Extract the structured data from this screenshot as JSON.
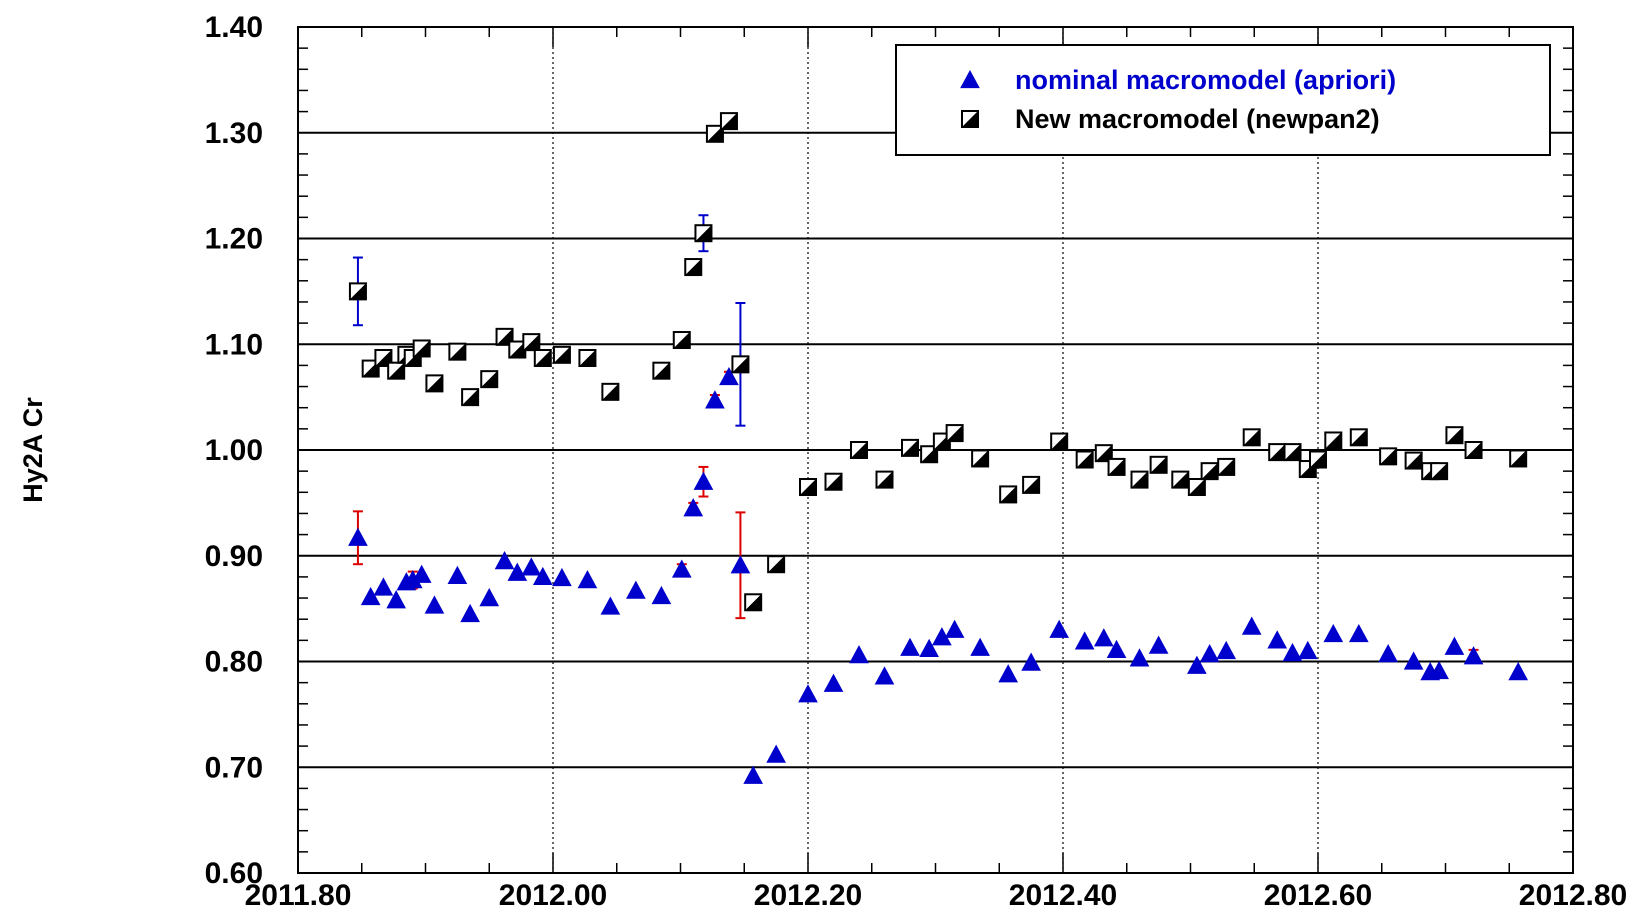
{
  "chart_data": {
    "type": "scatter",
    "title": "",
    "xlabel": "",
    "ylabel": "Hy2A Cr",
    "xlim": [
      2011.8,
      2012.8
    ],
    "ylim": [
      0.6,
      1.4
    ],
    "x_ticks": [
      "2011.80",
      "2012.00",
      "2012.20",
      "2012.40",
      "2012.60",
      "2012.80"
    ],
    "y_ticks": [
      "0.60",
      "0.70",
      "0.80",
      "0.90",
      "1.00",
      "1.10",
      "1.20",
      "1.30",
      "1.40"
    ],
    "grid": {
      "horizontal": "solid",
      "vertical": "dotted"
    },
    "legend_position": "top-right",
    "series": [
      {
        "name": "nominal macromodel (apriori)",
        "marker": "triangle",
        "color": "#0000cc",
        "error_color": "#dd0000",
        "points": [
          {
            "x": 2011.847,
            "y": 0.917,
            "err": 0.025
          },
          {
            "x": 2011.857,
            "y": 0.861
          },
          {
            "x": 2011.867,
            "y": 0.87
          },
          {
            "x": 2011.877,
            "y": 0.858
          },
          {
            "x": 2011.885,
            "y": 0.875
          },
          {
            "x": 2011.89,
            "y": 0.877,
            "err": 0.008
          },
          {
            "x": 2011.897,
            "y": 0.882
          },
          {
            "x": 2011.907,
            "y": 0.853
          },
          {
            "x": 2011.925,
            "y": 0.881
          },
          {
            "x": 2011.935,
            "y": 0.845
          },
          {
            "x": 2011.95,
            "y": 0.86
          },
          {
            "x": 2011.962,
            "y": 0.895
          },
          {
            "x": 2011.972,
            "y": 0.884
          },
          {
            "x": 2011.983,
            "y": 0.889
          },
          {
            "x": 2011.992,
            "y": 0.88
          },
          {
            "x": 2012.007,
            "y": 0.879
          },
          {
            "x": 2012.027,
            "y": 0.877
          },
          {
            "x": 2012.045,
            "y": 0.852
          },
          {
            "x": 2012.065,
            "y": 0.867
          },
          {
            "x": 2012.085,
            "y": 0.862
          },
          {
            "x": 2012.101,
            "y": 0.887,
            "err": 0.005
          },
          {
            "x": 2012.11,
            "y": 0.945,
            "err": 0.005
          },
          {
            "x": 2012.118,
            "y": 0.97,
            "err": 0.014
          },
          {
            "x": 2012.127,
            "y": 1.047,
            "err": 0.005
          },
          {
            "x": 2012.138,
            "y": 1.069,
            "err": 0.005
          },
          {
            "x": 2012.147,
            "y": 0.891,
            "err": 0.05
          },
          {
            "x": 2012.157,
            "y": 0.692
          },
          {
            "x": 2012.175,
            "y": 0.712
          },
          {
            "x": 2012.2,
            "y": 0.769
          },
          {
            "x": 2012.22,
            "y": 0.779
          },
          {
            "x": 2012.24,
            "y": 0.806
          },
          {
            "x": 2012.26,
            "y": 0.786
          },
          {
            "x": 2012.28,
            "y": 0.813
          },
          {
            "x": 2012.295,
            "y": 0.812
          },
          {
            "x": 2012.305,
            "y": 0.823
          },
          {
            "x": 2012.315,
            "y": 0.83
          },
          {
            "x": 2012.335,
            "y": 0.813
          },
          {
            "x": 2012.357,
            "y": 0.788
          },
          {
            "x": 2012.375,
            "y": 0.799
          },
          {
            "x": 2012.397,
            "y": 0.83
          },
          {
            "x": 2012.417,
            "y": 0.819
          },
          {
            "x": 2012.432,
            "y": 0.822
          },
          {
            "x": 2012.442,
            "y": 0.811
          },
          {
            "x": 2012.46,
            "y": 0.803
          },
          {
            "x": 2012.475,
            "y": 0.815
          },
          {
            "x": 2012.505,
            "y": 0.796
          },
          {
            "x": 2012.515,
            "y": 0.807
          },
          {
            "x": 2012.528,
            "y": 0.81
          },
          {
            "x": 2012.548,
            "y": 0.833
          },
          {
            "x": 2012.568,
            "y": 0.82
          },
          {
            "x": 2012.58,
            "y": 0.808
          },
          {
            "x": 2012.592,
            "y": 0.81
          },
          {
            "x": 2012.612,
            "y": 0.826
          },
          {
            "x": 2012.632,
            "y": 0.826
          },
          {
            "x": 2012.655,
            "y": 0.807
          },
          {
            "x": 2012.675,
            "y": 0.8
          },
          {
            "x": 2012.688,
            "y": 0.79
          },
          {
            "x": 2012.695,
            "y": 0.791
          },
          {
            "x": 2012.707,
            "y": 0.814
          },
          {
            "x": 2012.722,
            "y": 0.805,
            "err": 0.006
          },
          {
            "x": 2012.757,
            "y": 0.79
          }
        ]
      },
      {
        "name": "New macromodel (newpan2)",
        "marker": "half-filled-square",
        "color": "#000000",
        "error_color": "#0000cc",
        "points": [
          {
            "x": 2011.847,
            "y": 1.15,
            "err": 0.032
          },
          {
            "x": 2011.857,
            "y": 1.077
          },
          {
            "x": 2011.867,
            "y": 1.087
          },
          {
            "x": 2011.877,
            "y": 1.075
          },
          {
            "x": 2011.885,
            "y": 1.09
          },
          {
            "x": 2011.89,
            "y": 1.087,
            "err": 0.007
          },
          {
            "x": 2011.897,
            "y": 1.096
          },
          {
            "x": 2011.907,
            "y": 1.063
          },
          {
            "x": 2011.925,
            "y": 1.093
          },
          {
            "x": 2011.935,
            "y": 1.05
          },
          {
            "x": 2011.95,
            "y": 1.067
          },
          {
            "x": 2011.962,
            "y": 1.107
          },
          {
            "x": 2011.972,
            "y": 1.095
          },
          {
            "x": 2011.983,
            "y": 1.102
          },
          {
            "x": 2011.992,
            "y": 1.087
          },
          {
            "x": 2012.007,
            "y": 1.09
          },
          {
            "x": 2012.027,
            "y": 1.087
          },
          {
            "x": 2012.045,
            "y": 1.055
          },
          {
            "x": 2012.085,
            "y": 1.075
          },
          {
            "x": 2012.101,
            "y": 1.104,
            "err": 0.005
          },
          {
            "x": 2012.11,
            "y": 1.173
          },
          {
            "x": 2012.118,
            "y": 1.205,
            "err": 0.017
          },
          {
            "x": 2012.127,
            "y": 1.299,
            "err": 0.005
          },
          {
            "x": 2012.138,
            "y": 1.311,
            "err": 0.005
          },
          {
            "x": 2012.147,
            "y": 1.081,
            "err": 0.058
          },
          {
            "x": 2012.157,
            "y": 0.856
          },
          {
            "x": 2012.175,
            "y": 0.892
          },
          {
            "x": 2012.2,
            "y": 0.965
          },
          {
            "x": 2012.22,
            "y": 0.97
          },
          {
            "x": 2012.24,
            "y": 1.0
          },
          {
            "x": 2012.26,
            "y": 0.972
          },
          {
            "x": 2012.28,
            "y": 1.002
          },
          {
            "x": 2012.295,
            "y": 0.996
          },
          {
            "x": 2012.305,
            "y": 1.008
          },
          {
            "x": 2012.315,
            "y": 1.016
          },
          {
            "x": 2012.335,
            "y": 0.992
          },
          {
            "x": 2012.357,
            "y": 0.958
          },
          {
            "x": 2012.375,
            "y": 0.967
          },
          {
            "x": 2012.397,
            "y": 1.008
          },
          {
            "x": 2012.417,
            "y": 0.991
          },
          {
            "x": 2012.432,
            "y": 0.997
          },
          {
            "x": 2012.442,
            "y": 0.984
          },
          {
            "x": 2012.46,
            "y": 0.972
          },
          {
            "x": 2012.475,
            "y": 0.986
          },
          {
            "x": 2012.492,
            "y": 0.972
          },
          {
            "x": 2012.505,
            "y": 0.965
          },
          {
            "x": 2012.515,
            "y": 0.98
          },
          {
            "x": 2012.528,
            "y": 0.984
          },
          {
            "x": 2012.548,
            "y": 1.012
          },
          {
            "x": 2012.568,
            "y": 0.998
          },
          {
            "x": 2012.58,
            "y": 0.998
          },
          {
            "x": 2012.592,
            "y": 0.982
          },
          {
            "x": 2012.6,
            "y": 0.991
          },
          {
            "x": 2012.612,
            "y": 1.009
          },
          {
            "x": 2012.632,
            "y": 1.012
          },
          {
            "x": 2012.655,
            "y": 0.994
          },
          {
            "x": 2012.675,
            "y": 0.99
          },
          {
            "x": 2012.688,
            "y": 0.98
          },
          {
            "x": 2012.695,
            "y": 0.98
          },
          {
            "x": 2012.707,
            "y": 1.014
          },
          {
            "x": 2012.722,
            "y": 1.0,
            "err": 0.005
          },
          {
            "x": 2012.757,
            "y": 0.992
          }
        ]
      }
    ]
  }
}
